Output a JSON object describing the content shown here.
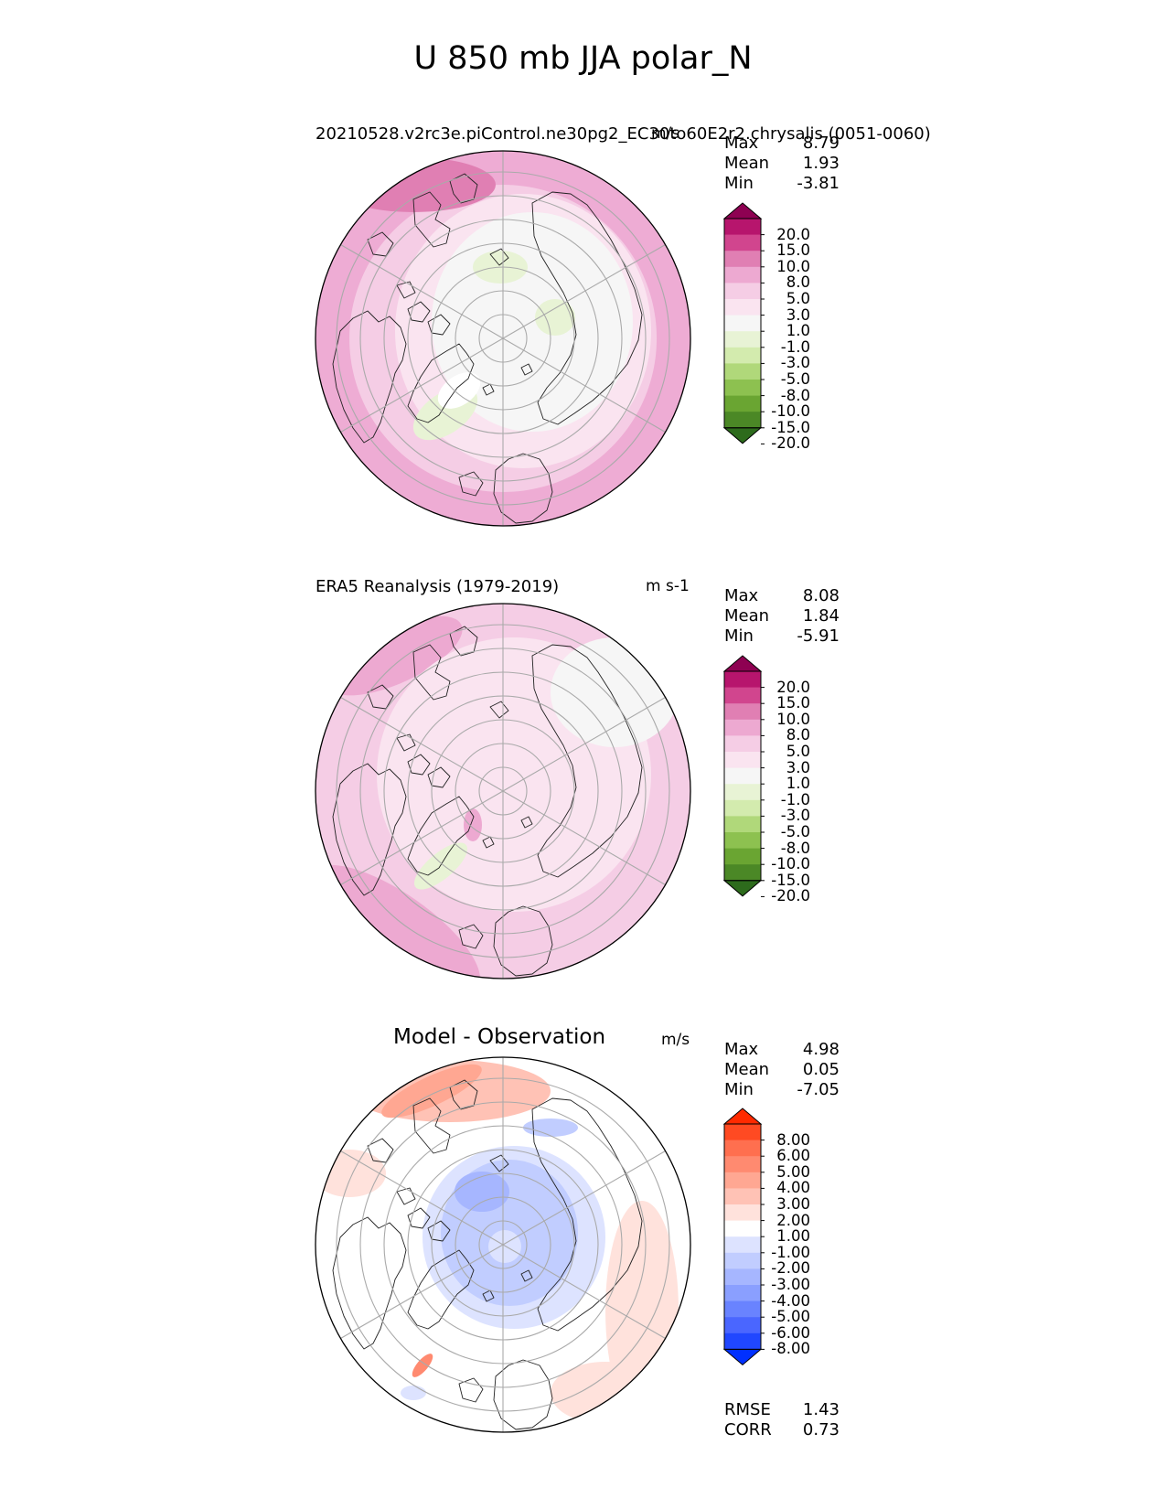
{
  "figure": {
    "title": "U 850 mb JJA polar_N"
  },
  "panels": [
    {
      "id": "test",
      "title_left": "20210528.v2rc3e.piControl.ne30pg2_EC30to60E2r2.chrysalis (0051-0060)",
      "title_right": "m/s",
      "stats": {
        "max_label": "Max",
        "max": "8.79",
        "mean_label": "Mean",
        "mean": "1.93",
        "min_label": "Min",
        "min": "-3.81"
      },
      "colorbar_ticks": [
        "20.0",
        "15.0",
        "10.0",
        "8.0",
        "5.0",
        "3.0",
        "1.0",
        "-1.0",
        "-3.0",
        "-5.0",
        "-8.0",
        "-10.0",
        "-15.0",
        "-20.0"
      ]
    },
    {
      "id": "reference",
      "title_left": "ERA5 Reanalysis (1979-2019)",
      "title_right": "m s-1",
      "stats": {
        "max_label": "Max",
        "max": "8.08",
        "mean_label": "Mean",
        "mean": "1.84",
        "min_label": "Min",
        "min": "-5.91"
      },
      "colorbar_ticks": [
        "20.0",
        "15.0",
        "10.0",
        "8.0",
        "5.0",
        "3.0",
        "1.0",
        "-1.0",
        "-3.0",
        "-5.0",
        "-8.0",
        "-10.0",
        "-15.0",
        "-20.0"
      ]
    },
    {
      "id": "difference",
      "title_center": "Model - Observation",
      "title_right": "m/s",
      "stats": {
        "max_label": "Max",
        "max": "4.98",
        "mean_label": "Mean",
        "mean": "0.05",
        "min_label": "Min",
        "min": "-7.05"
      },
      "colorbar_ticks": [
        "8.00",
        "6.00",
        "5.00",
        "4.00",
        "3.00",
        "2.00",
        "1.00",
        "-1.00",
        "-2.00",
        "-3.00",
        "-4.00",
        "-5.00",
        "-6.00",
        "-8.00"
      ],
      "metrics": {
        "rmse_label": "RMSE",
        "rmse": "1.43",
        "corr_label": "CORR",
        "corr": "0.73"
      }
    }
  ],
  "colors": {
    "piyg": [
      "#8e0152",
      "#b7156d",
      "#d1458e",
      "#e07fb3",
      "#eda9d1",
      "#f5cde5",
      "#fae4f0",
      "#f6f6f6",
      "#e8f3d5",
      "#d3ebae",
      "#b0d87a",
      "#8dc150",
      "#6aa532",
      "#4b8826",
      "#2d6b1c"
    ],
    "bwr": [
      "#ff2a00",
      "#ff4a22",
      "#ff6f4f",
      "#ff8a70",
      "#ffa792",
      "#ffc2b5",
      "#ffe2dc",
      "#ffffff",
      "#dde3ff",
      "#c1cdff",
      "#a6b6ff",
      "#8a9fff",
      "#6983ff",
      "#4a66ff",
      "#2047ff",
      "#0030ff"
    ]
  },
  "chart_data": [
    {
      "type": "heatmap",
      "projection": "north polar stereographic",
      "title": "20210528.v2rc3e.piControl.ne30pg2_EC30to60E2r2.chrysalis (0051-0060)",
      "units": "m/s",
      "stats": {
        "max": 8.79,
        "mean": 1.93,
        "min": -3.81
      },
      "colorbar_levels": [
        -20,
        -15,
        -10,
        -8,
        -5,
        -3,
        -1,
        1,
        3,
        5,
        8,
        10,
        15,
        20
      ],
      "colormap": "PiYG_r"
    },
    {
      "type": "heatmap",
      "projection": "north polar stereographic",
      "title": "ERA5 Reanalysis (1979-2019)",
      "units": "m s-1",
      "stats": {
        "max": 8.08,
        "mean": 1.84,
        "min": -5.91
      },
      "colorbar_levels": [
        -20,
        -15,
        -10,
        -8,
        -5,
        -3,
        -1,
        1,
        3,
        5,
        8,
        10,
        15,
        20
      ],
      "colormap": "PiYG_r"
    },
    {
      "type": "heatmap",
      "projection": "north polar stereographic",
      "title": "Model - Observation",
      "units": "m/s",
      "stats": {
        "max": 4.98,
        "mean": 0.05,
        "min": -7.05,
        "rmse": 1.43,
        "corr": 0.73
      },
      "colorbar_levels": [
        -8,
        -6,
        -5,
        -4,
        -3,
        -2,
        -1,
        1,
        2,
        3,
        4,
        5,
        6,
        8
      ],
      "colormap": "bwr"
    }
  ]
}
